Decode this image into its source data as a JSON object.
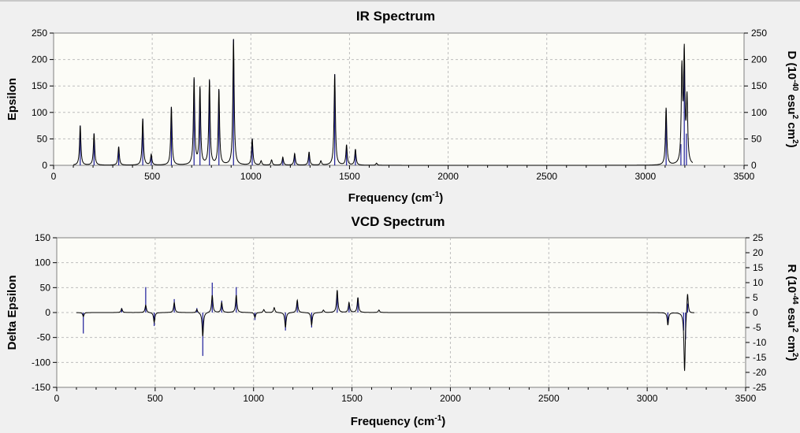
{
  "chart_data": [
    {
      "type": "line",
      "title": "IR Spectrum",
      "xlabel": "Frequency (cm",
      "xlabel_sup": "-1",
      "xlabel_end": ")",
      "ylabel": "Epsilon",
      "y2label_parts": [
        "D (10",
        "-40",
        " esu",
        "2",
        " cm",
        "2",
        ")"
      ],
      "xlim": [
        0,
        3500
      ],
      "ylim": [
        0,
        250
      ],
      "y2lim": [
        0,
        250
      ],
      "x_ticks": [
        "0",
        "500",
        "1000",
        "1500",
        "2000",
        "2500",
        "3000",
        "3500"
      ],
      "y_ticks": [
        "0",
        "50",
        "100",
        "150",
        "200",
        "250"
      ],
      "y2_ticks": [
        "0",
        "50",
        "100",
        "150",
        "200",
        "250"
      ],
      "peaks": [
        [
          135,
          75
        ],
        [
          205,
          60
        ],
        [
          330,
          35
        ],
        [
          452,
          88
        ],
        [
          495,
          20
        ],
        [
          597,
          110
        ],
        [
          712,
          163
        ],
        [
          742,
          145
        ],
        [
          790,
          160
        ],
        [
          838,
          142
        ],
        [
          912,
          238
        ],
        [
          1007,
          50
        ],
        [
          1052,
          8
        ],
        [
          1105,
          10
        ],
        [
          1162,
          15
        ],
        [
          1222,
          22
        ],
        [
          1295,
          25
        ],
        [
          1355,
          8
        ],
        [
          1425,
          172
        ],
        [
          1485,
          38
        ],
        [
          1530,
          30
        ],
        [
          1637,
          4
        ],
        [
          3105,
          108
        ],
        [
          3185,
          175
        ],
        [
          3197,
          203
        ],
        [
          3211,
          120
        ]
      ],
      "sticks_y2": [
        [
          135,
          75
        ],
        [
          205,
          60
        ],
        [
          330,
          35
        ],
        [
          452,
          88
        ],
        [
          495,
          20
        ],
        [
          597,
          110
        ],
        [
          712,
          163
        ],
        [
          742,
          145
        ],
        [
          790,
          160
        ],
        [
          838,
          142
        ],
        [
          912,
          238
        ],
        [
          1007,
          50
        ],
        [
          1162,
          15
        ],
        [
          1222,
          22
        ],
        [
          1295,
          25
        ],
        [
          1425,
          172
        ],
        [
          1485,
          38
        ],
        [
          1530,
          30
        ],
        [
          3105,
          105
        ],
        [
          3180,
          40
        ],
        [
          3197,
          200
        ],
        [
          3208,
          60
        ]
      ],
      "line_width_cm": 4,
      "x_span": [
        100,
        3240
      ]
    },
    {
      "type": "line",
      "title": "VCD Spectrum",
      "xlabel": "Frequency (cm",
      "xlabel_sup": "-1",
      "xlabel_end": ")",
      "ylabel": "Delta Epsilon",
      "y2label_parts": [
        "R (10",
        "-44",
        " esu",
        "2",
        " cm",
        "2",
        ")"
      ],
      "xlim": [
        0,
        3500
      ],
      "ylim": [
        -150,
        150
      ],
      "y2lim": [
        -25,
        25
      ],
      "x_ticks": [
        "0",
        "500",
        "1000",
        "1500",
        "2000",
        "2500",
        "3000",
        "3500"
      ],
      "y_ticks": [
        "-150",
        "-100",
        "-50",
        "0",
        "50",
        "100",
        "150"
      ],
      "y2_ticks": [
        "-25",
        "-20",
        "-15",
        "-10",
        "-5",
        "0",
        "5",
        "10",
        "15",
        "20",
        "25"
      ],
      "peaks": [
        [
          135,
          -8
        ],
        [
          330,
          8
        ],
        [
          452,
          15
        ],
        [
          495,
          -20
        ],
        [
          597,
          20
        ],
        [
          712,
          7
        ],
        [
          742,
          -48
        ],
        [
          790,
          35
        ],
        [
          838,
          20
        ],
        [
          912,
          35
        ],
        [
          1007,
          -10
        ],
        [
          1052,
          6
        ],
        [
          1105,
          10
        ],
        [
          1162,
          -30
        ],
        [
          1222,
          25
        ],
        [
          1295,
          -25
        ],
        [
          1355,
          5
        ],
        [
          1425,
          45
        ],
        [
          1485,
          20
        ],
        [
          1530,
          30
        ],
        [
          1637,
          5
        ],
        [
          3105,
          -25
        ],
        [
          3190,
          -120
        ],
        [
          3205,
          45
        ]
      ],
      "sticks_y2": [
        [
          135,
          -7
        ],
        [
          330,
          1.5
        ],
        [
          452,
          8.5
        ],
        [
          495,
          -4.5
        ],
        [
          597,
          4.5
        ],
        [
          712,
          1.5
        ],
        [
          742,
          -14.5
        ],
        [
          790,
          10
        ],
        [
          838,
          4
        ],
        [
          912,
          8.5
        ],
        [
          1007,
          -2.5
        ],
        [
          1162,
          -6
        ],
        [
          1222,
          4
        ],
        [
          1295,
          -5
        ],
        [
          1425,
          7
        ],
        [
          1485,
          2.5
        ],
        [
          1530,
          5
        ],
        [
          3105,
          -4
        ],
        [
          3185,
          -6
        ],
        [
          3195,
          -9
        ],
        [
          3205,
          3
        ]
      ],
      "line_width_cm": 4,
      "x_span": [
        100,
        3240
      ]
    }
  ]
}
